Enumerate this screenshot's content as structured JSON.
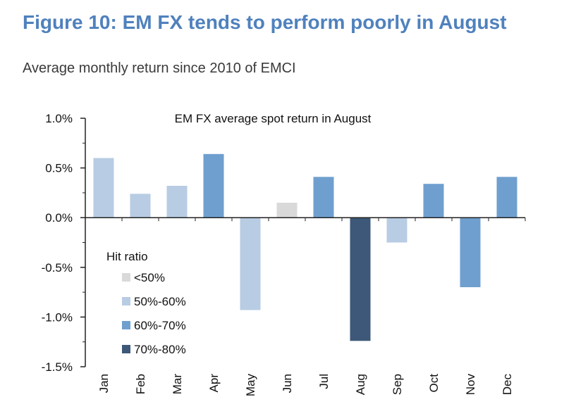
{
  "figure": {
    "title": "Figure 10: EM FX tends to perform poorly in August",
    "subtitle": "Average monthly return since 2010 of EMCI"
  },
  "chart_data": {
    "type": "bar",
    "title": "EM FX average spot return in August",
    "xlabel": "",
    "ylabel": "",
    "categories": [
      "Jan",
      "Feb",
      "Mar",
      "Apr",
      "May",
      "Jun",
      "Jul",
      "Aug",
      "Sep",
      "Oct",
      "Nov",
      "Dec"
    ],
    "values": [
      0.6,
      0.24,
      0.32,
      0.64,
      -0.93,
      0.15,
      0.41,
      -1.24,
      -0.25,
      0.34,
      -0.7,
      0.41
    ],
    "hit_ratio_bucket": [
      "50%-60%",
      "50%-60%",
      "50%-60%",
      "60%-70%",
      "50%-60%",
      "<50%",
      "60%-70%",
      "70%-80%",
      "50%-60%",
      "60%-70%",
      "60%-70%",
      "60%-70%"
    ],
    "ylim": [
      -1.5,
      1.0
    ],
    "yticks": [
      1.0,
      0.5,
      0.0,
      -0.5,
      -1.0,
      -1.5
    ],
    "ytick_labels": [
      "1.0%",
      "0.5%",
      "0.0%",
      "-0.5%",
      "-1.0%",
      "-1.5%"
    ],
    "grid": false,
    "legend": {
      "title": "Hit ratio",
      "placement": "left",
      "entries": [
        {
          "label": "<50%",
          "color": "#d9d9d9"
        },
        {
          "label": "50%-60%",
          "color": "#b8cce4"
        },
        {
          "label": "60%-70%",
          "color": "#6f9fcf"
        },
        {
          "label": "70%-80%",
          "color": "#3d5878"
        }
      ]
    }
  }
}
